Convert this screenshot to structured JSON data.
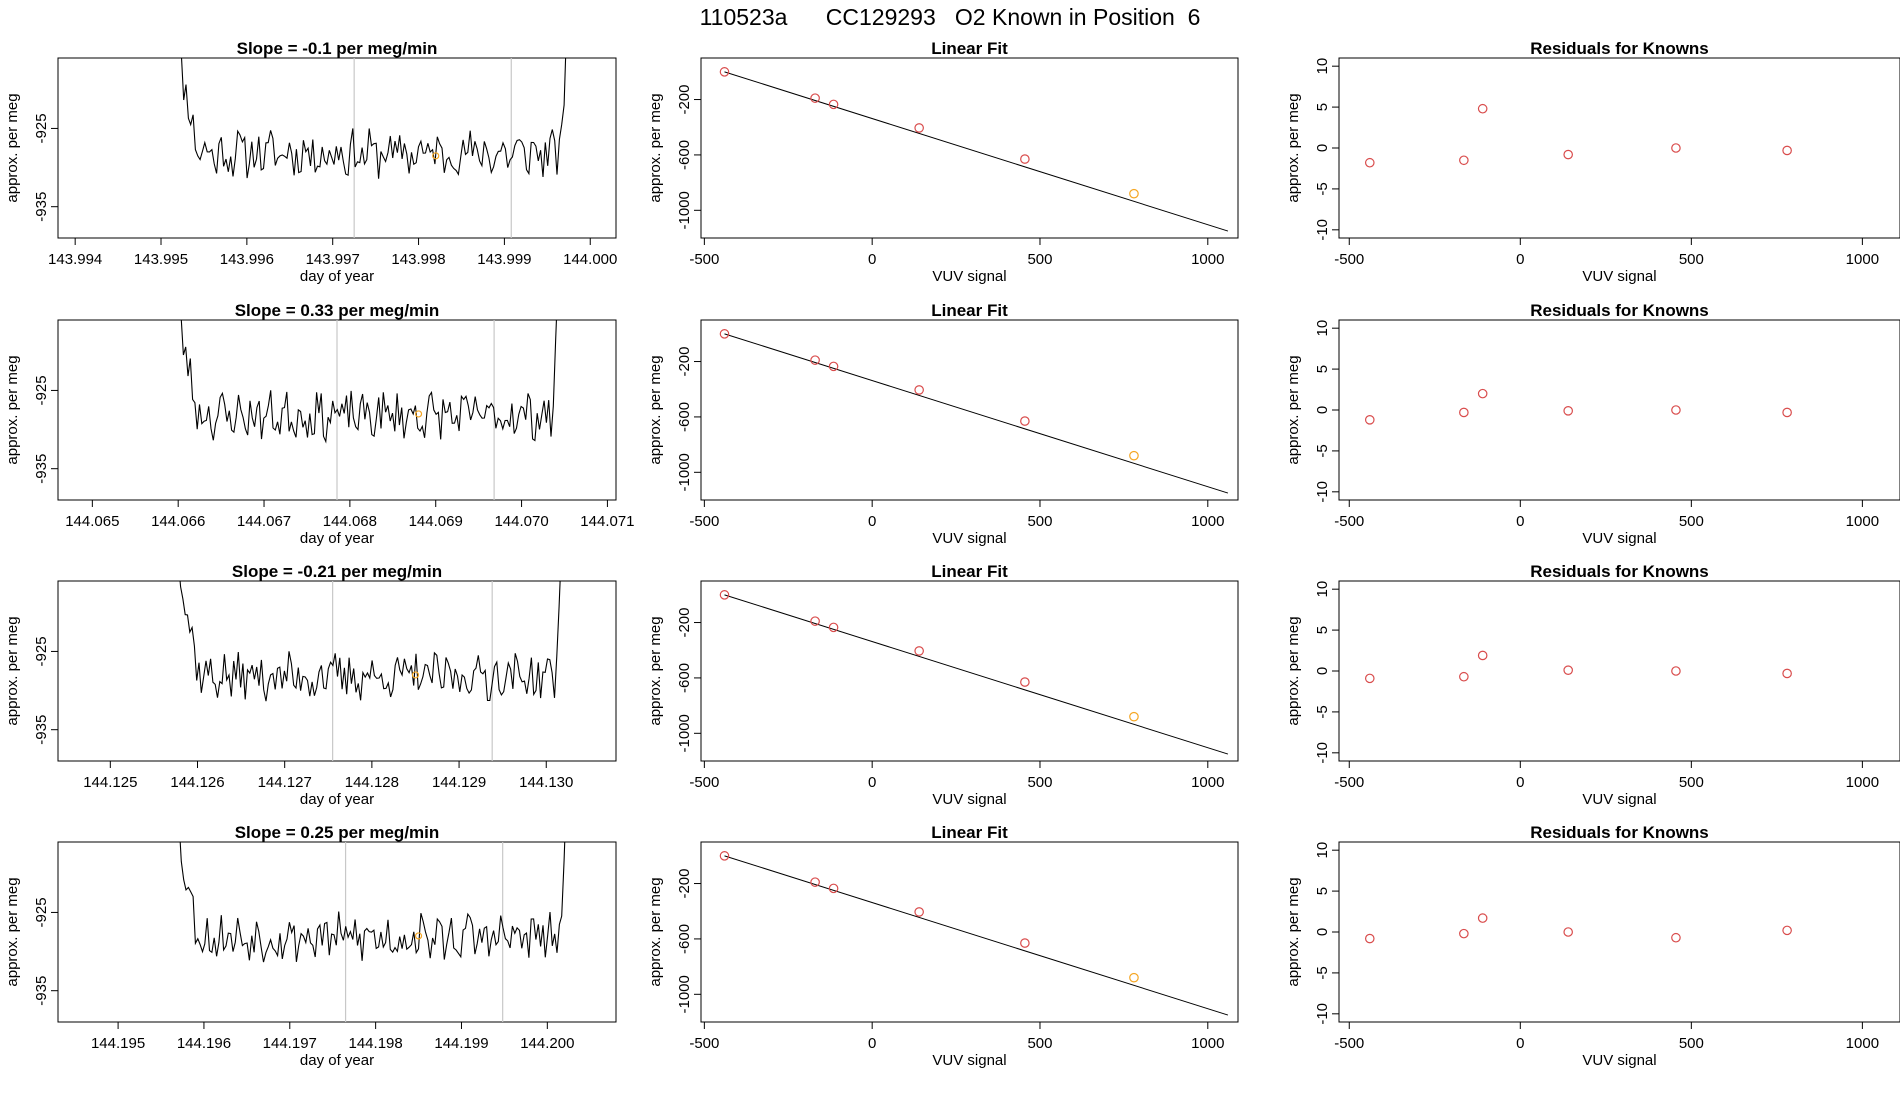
{
  "header": {
    "title": "110523a      CC129293   O2 Known in Position  6"
  },
  "colors": {
    "line": "#000000",
    "vline": "#c8c8c8",
    "orange": "#f5a623",
    "red": "#d94c4c",
    "frame": "#000000"
  },
  "chart_data": [
    {
      "type": "line",
      "panel": "time",
      "row": 0,
      "title": "Slope =  -0.1  per meg/min",
      "xlabel": "day of year",
      "ylabel": "approx. per meg",
      "xlim": [
        143.9938,
        144.0003
      ],
      "ylim": [
        -939,
        -916
      ],
      "xticks": [
        143.994,
        143.995,
        143.996,
        143.997,
        143.998,
        143.999,
        144.0
      ],
      "xtick_labels": [
        "143.994",
        "143.995",
        "143.996",
        "143.997",
        "143.998",
        "143.999",
        "144.000"
      ],
      "yticks": [
        -925,
        -935
      ],
      "ytick_labels": [
        "-925",
        "-935"
      ],
      "x_start": 143.9951,
      "x_end": 143.99975,
      "vlines": [
        143.99725,
        143.99908
      ],
      "marker": [
        143.9982,
        -928.5
      ],
      "seed": 11
    },
    {
      "type": "scatter",
      "panel": "fit",
      "row": 0,
      "title": "Linear Fit",
      "xlabel": "VUV signal",
      "ylabel": "approx. per meg",
      "xlim": [
        -510,
        1090
      ],
      "ylim": [
        -1200,
        100
      ],
      "xticks": [
        -500,
        0,
        500,
        1000
      ],
      "xtick_labels": [
        "-500",
        "0",
        "500",
        "1000"
      ],
      "yticks": [
        -200,
        -600,
        -1000
      ],
      "ytick_labels": [
        "-200",
        "-600",
        "-1000"
      ],
      "line": [
        [
          -440,
          0
        ],
        [
          1060,
          -1150
        ]
      ],
      "points": [
        [
          -440,
          0
        ],
        [
          -170,
          -190
        ],
        [
          -115,
          -235
        ],
        [
          140,
          -405
        ],
        [
          455,
          -630
        ],
        [
          780,
          -880
        ]
      ],
      "point_colors": [
        "red",
        "red",
        "red",
        "red",
        "red",
        "orange"
      ]
    },
    {
      "type": "scatter",
      "panel": "resid",
      "row": 0,
      "title": "Residuals for Knowns",
      "xlabel": "VUV signal",
      "ylabel": "approx. per meg",
      "xlim": [
        -530,
        1110
      ],
      "ylim": [
        -11,
        11
      ],
      "xticks": [
        -500,
        0,
        500,
        1000
      ],
      "xtick_labels": [
        "-500",
        "0",
        "500",
        "1000"
      ],
      "yticks": [
        10,
        5,
        0,
        -5,
        -10
      ],
      "ytick_labels": [
        "10",
        "5",
        "0",
        "-5",
        "-10"
      ],
      "points": [
        [
          -440,
          -1.8
        ],
        [
          -165,
          -1.5
        ],
        [
          -110,
          4.8
        ],
        [
          140,
          -0.8
        ],
        [
          455,
          0.0
        ],
        [
          780,
          -0.3
        ]
      ]
    },
    {
      "type": "line",
      "panel": "time",
      "row": 1,
      "title": "Slope =  0.33  per meg/min",
      "xlabel": "day of year",
      "ylabel": "approx. per meg",
      "xlim": [
        144.0646,
        144.0711
      ],
      "ylim": [
        -939,
        -916
      ],
      "xticks": [
        144.065,
        144.066,
        144.067,
        144.068,
        144.069,
        144.07,
        144.071
      ],
      "xtick_labels": [
        "144.065",
        "144.066",
        "144.067",
        "144.068",
        "144.069",
        "144.070",
        "144.071"
      ],
      "yticks": [
        -925,
        -935
      ],
      "ytick_labels": [
        "-925",
        "-935"
      ],
      "x_start": 144.0659,
      "x_end": 144.07045,
      "vlines": [
        144.06785,
        144.06968
      ],
      "marker": [
        144.0688,
        -928.0
      ],
      "seed": 23
    },
    {
      "type": "scatter",
      "panel": "fit",
      "row": 1,
      "title": "Linear Fit",
      "xlabel": "VUV signal",
      "ylabel": "approx. per meg",
      "xlim": [
        -510,
        1090
      ],
      "ylim": [
        -1200,
        100
      ],
      "xticks": [
        -500,
        0,
        500,
        1000
      ],
      "xtick_labels": [
        "-500",
        "0",
        "500",
        "1000"
      ],
      "yticks": [
        -200,
        -600,
        -1000
      ],
      "ytick_labels": [
        "-200",
        "-600",
        "-1000"
      ],
      "line": [
        [
          -440,
          0
        ],
        [
          1060,
          -1150
        ]
      ],
      "points": [
        [
          -440,
          0
        ],
        [
          -170,
          -190
        ],
        [
          -115,
          -235
        ],
        [
          140,
          -405
        ],
        [
          455,
          -630
        ],
        [
          780,
          -880
        ]
      ],
      "point_colors": [
        "red",
        "red",
        "red",
        "red",
        "red",
        "orange"
      ]
    },
    {
      "type": "scatter",
      "panel": "resid",
      "row": 1,
      "title": "Residuals for Knowns",
      "xlabel": "VUV signal",
      "ylabel": "approx. per meg",
      "xlim": [
        -530,
        1110
      ],
      "ylim": [
        -11,
        11
      ],
      "xticks": [
        -500,
        0,
        500,
        1000
      ],
      "xtick_labels": [
        "-500",
        "0",
        "500",
        "1000"
      ],
      "yticks": [
        10,
        5,
        0,
        -5,
        -10
      ],
      "ytick_labels": [
        "10",
        "5",
        "0",
        "-5",
        "-10"
      ],
      "points": [
        [
          -440,
          -1.2
        ],
        [
          -165,
          -0.3
        ],
        [
          -110,
          2.0
        ],
        [
          140,
          -0.1
        ],
        [
          455,
          0.0
        ],
        [
          780,
          -0.3
        ]
      ]
    },
    {
      "type": "line",
      "panel": "time",
      "row": 2,
      "title": "Slope =  -0.21  per meg/min",
      "xlabel": "day of year",
      "ylabel": "approx. per meg",
      "xlim": [
        144.1244,
        144.1308
      ],
      "ylim": [
        -939,
        -916
      ],
      "xticks": [
        144.125,
        144.126,
        144.127,
        144.128,
        144.129,
        144.13
      ],
      "xtick_labels": [
        "144.125",
        "144.126",
        "144.127",
        "144.128",
        "144.129",
        "144.130"
      ],
      "yticks": [
        -925,
        -935
      ],
      "ytick_labels": [
        "-925",
        "-935"
      ],
      "x_start": 144.1257,
      "x_end": 144.1302,
      "vlines": [
        144.12755,
        144.12938
      ],
      "marker": [
        144.1285,
        -928.0
      ],
      "seed": 37
    },
    {
      "type": "scatter",
      "panel": "fit",
      "row": 2,
      "title": "Linear Fit",
      "xlabel": "VUV signal",
      "ylabel": "approx. per meg",
      "xlim": [
        -510,
        1090
      ],
      "ylim": [
        -1200,
        100
      ],
      "xticks": [
        -500,
        0,
        500,
        1000
      ],
      "xtick_labels": [
        "-500",
        "0",
        "500",
        "1000"
      ],
      "yticks": [
        -200,
        -600,
        -1000
      ],
      "ytick_labels": [
        "-200",
        "-600",
        "-1000"
      ],
      "line": [
        [
          -440,
          0
        ],
        [
          1060,
          -1150
        ]
      ],
      "points": [
        [
          -440,
          0
        ],
        [
          -170,
          -190
        ],
        [
          -115,
          -235
        ],
        [
          140,
          -405
        ],
        [
          455,
          -630
        ],
        [
          780,
          -880
        ]
      ],
      "point_colors": [
        "red",
        "red",
        "red",
        "red",
        "red",
        "orange"
      ]
    },
    {
      "type": "scatter",
      "panel": "resid",
      "row": 2,
      "title": "Residuals for Knowns",
      "xlabel": "VUV signal",
      "ylabel": "approx. per meg",
      "xlim": [
        -530,
        1110
      ],
      "ylim": [
        -11,
        11
      ],
      "xticks": [
        -500,
        0,
        500,
        1000
      ],
      "xtick_labels": [
        "-500",
        "0",
        "500",
        "1000"
      ],
      "points": [
        [
          -440,
          -0.9
        ],
        [
          -165,
          -0.7
        ],
        [
          -110,
          1.9
        ],
        [
          140,
          0.1
        ],
        [
          455,
          0.0
        ],
        [
          780,
          -0.3
        ]
      ],
      "yticks": [
        10,
        5,
        0,
        -5,
        -10
      ],
      "ytick_labels": [
        "10",
        "5",
        "0",
        "-5",
        "-10"
      ]
    },
    {
      "type": "line",
      "panel": "time",
      "row": 3,
      "title": "Slope =  0.25  per meg/min",
      "xlabel": "day of year",
      "ylabel": "approx. per meg",
      "xlim": [
        144.1943,
        144.2008
      ],
      "ylim": [
        -939,
        -916
      ],
      "xticks": [
        144.195,
        144.196,
        144.197,
        144.198,
        144.199,
        144.2
      ],
      "xtick_labels": [
        "144.195",
        "144.196",
        "144.197",
        "144.198",
        "144.199",
        "144.200"
      ],
      "yticks": [
        -925,
        -935
      ],
      "ytick_labels": [
        "-925",
        "-935"
      ],
      "x_start": 144.1956,
      "x_end": 144.20025,
      "vlines": [
        144.19765,
        144.19948
      ],
      "marker": [
        144.1985,
        -928.0
      ],
      "seed": 53
    },
    {
      "type": "scatter",
      "panel": "fit",
      "row": 3,
      "title": "Linear Fit",
      "xlabel": "VUV signal",
      "ylabel": "approx. per meg",
      "xlim": [
        -510,
        1090
      ],
      "ylim": [
        -1200,
        100
      ],
      "xticks": [
        -500,
        0,
        500,
        1000
      ],
      "xtick_labels": [
        "-500",
        "0",
        "500",
        "1000"
      ],
      "yticks": [
        -200,
        -600,
        -1000
      ],
      "ytick_labels": [
        "-200",
        "-600",
        "-1000"
      ],
      "line": [
        [
          -440,
          0
        ],
        [
          1060,
          -1150
        ]
      ],
      "points": [
        [
          -440,
          0
        ],
        [
          -170,
          -190
        ],
        [
          -115,
          -235
        ],
        [
          140,
          -405
        ],
        [
          455,
          -630
        ],
        [
          780,
          -880
        ]
      ],
      "point_colors": [
        "red",
        "red",
        "red",
        "red",
        "red",
        "orange"
      ]
    },
    {
      "type": "scatter",
      "panel": "resid",
      "row": 3,
      "title": "Residuals for Knowns",
      "xlabel": "VUV signal",
      "ylabel": "approx. per meg",
      "xlim": [
        -530,
        1110
      ],
      "ylim": [
        -11,
        11
      ],
      "xticks": [
        -500,
        0,
        500,
        1000
      ],
      "xtick_labels": [
        "-500",
        "0",
        "500",
        "1000"
      ],
      "yticks": [
        10,
        5,
        0,
        -5,
        -10
      ],
      "ytick_labels": [
        "10",
        "5",
        "0",
        "-5",
        "-10"
      ],
      "points": [
        [
          -440,
          -0.8
        ],
        [
          -165,
          -0.2
        ],
        [
          -110,
          1.7
        ],
        [
          140,
          0.0
        ],
        [
          455,
          -0.7
        ],
        [
          780,
          0.2
        ]
      ]
    }
  ]
}
